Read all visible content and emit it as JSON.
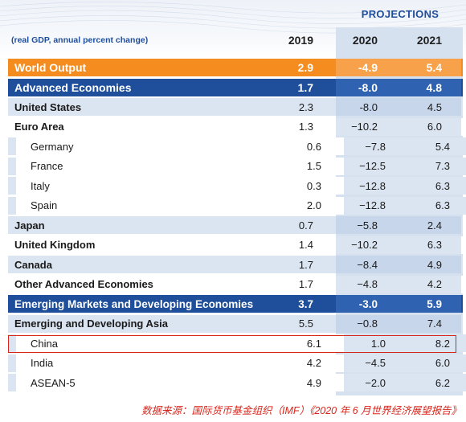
{
  "header": {
    "projections_label": "PROJECTIONS",
    "units_label": "(real GDP, annual percent change)",
    "years": [
      "2019",
      "2020",
      "2021"
    ]
  },
  "rows": [
    {
      "label": "World Output",
      "v2019": "2.9",
      "v2020": "-4.9",
      "v2021": "5.4",
      "style": "world"
    },
    {
      "label": "Advanced Economies",
      "v2019": "1.7",
      "v2020": "-8.0",
      "v2021": "4.8",
      "style": "adv"
    },
    {
      "label": "United States",
      "v2019": "2.3",
      "v2020": "-8.0",
      "v2021": "4.5",
      "style": "light-bold"
    },
    {
      "label": "Euro Area",
      "v2019": "1.3",
      "v2020": "−10.2",
      "v2021": "6.0",
      "style": "white-bold"
    },
    {
      "label": "Germany",
      "v2019": "0.6",
      "v2020": "−7.8",
      "v2021": "5.4",
      "style": "sub"
    },
    {
      "label": "France",
      "v2019": "1.5",
      "v2020": "−12.5",
      "v2021": "7.3",
      "style": "sub"
    },
    {
      "label": "Italy",
      "v2019": "0.3",
      "v2020": "−12.8",
      "v2021": "6.3",
      "style": "sub"
    },
    {
      "label": "Spain",
      "v2019": "2.0",
      "v2020": "−12.8",
      "v2021": "6.3",
      "style": "sub"
    },
    {
      "label": "Japan",
      "v2019": "0.7",
      "v2020": "−5.8",
      "v2021": "2.4",
      "style": "light-bold"
    },
    {
      "label": "United Kingdom",
      "v2019": "1.4",
      "v2020": "−10.2",
      "v2021": "6.3",
      "style": "white-bold"
    },
    {
      "label": "Canada",
      "v2019": "1.7",
      "v2020": "−8.4",
      "v2021": "4.9",
      "style": "light-bold"
    },
    {
      "label": "Other Advanced Economies",
      "v2019": "1.7",
      "v2020": "−4.8",
      "v2021": "4.2",
      "style": "white-bold"
    },
    {
      "label": "Emerging Markets and Developing Economies",
      "v2019": "3.7",
      "v2020": "-3.0",
      "v2021": "5.9",
      "style": "emg"
    },
    {
      "label": "Emerging and Developing Asia",
      "v2019": "5.5",
      "v2020": "−0.8",
      "v2021": "7.4",
      "style": "light-bold"
    },
    {
      "label": "China",
      "v2019": "6.1",
      "v2020": "1.0",
      "v2021": "8.2",
      "style": "sub"
    },
    {
      "label": "India",
      "v2019": "4.2",
      "v2020": "−4.5",
      "v2021": "6.0",
      "style": "sub"
    },
    {
      "label": "ASEAN-5",
      "v2019": "4.9",
      "v2020": "−2.0",
      "v2021": "6.2",
      "style": "sub"
    }
  ],
  "highlighted_row": "China",
  "source_note": "数据来源：国际货币基金组织（IMF）《2020 年 6 月世界经济展望报告》",
  "colors": {
    "world_orange": "#f58c1f",
    "navy": "#1f4e9a",
    "light_blue": "#dbe5f1",
    "highlight_red": "#d9261c"
  }
}
